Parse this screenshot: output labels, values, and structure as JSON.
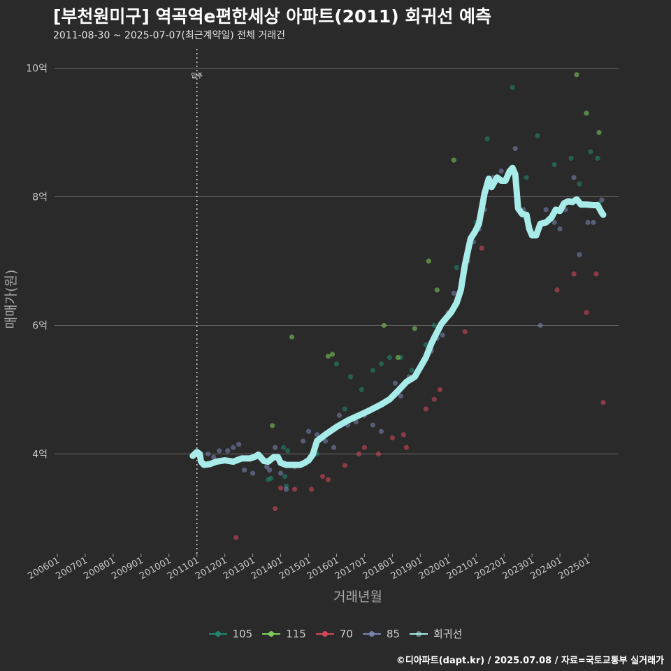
{
  "header": {
    "title": "[부천원미구] 역곡역e편한세상 아파트(2011) 회귀선 예측",
    "subtitle": "2011-08-30 ~ 2025-07-07(최근계약일) 전체 거래건"
  },
  "footer": {
    "credit": "©디아파트(dapt.kr) / 2025.07.08 / 자료=국토교통부 실거래가"
  },
  "colors": {
    "s105": "#1f8a70",
    "s115": "#7fd15a",
    "s70": "#d9485a",
    "s85": "#7b86b4",
    "regression": "#a8ecea",
    "background": "#2b2a2b",
    "grid": "#6a6a6a"
  },
  "chart_data": {
    "type": "scatter",
    "title": "[부천원미구] 역곡역e편한세상 아파트(2011) 회귀선 예측",
    "xlabel": "거래년월",
    "ylabel": "매매가(원)",
    "xlim": [
      2005.9,
      2026.1
    ],
    "ylim": [
      2.45,
      10.3
    ],
    "x_ticks": [
      {
        "label": "200601",
        "value": 2006.0
      },
      {
        "label": "200701",
        "value": 2007.0
      },
      {
        "label": "200801",
        "value": 2008.0
      },
      {
        "label": "200901",
        "value": 2009.0
      },
      {
        "label": "201001",
        "value": 2010.0
      },
      {
        "label": "201101",
        "value": 2011.0
      },
      {
        "label": "201201",
        "value": 2012.0
      },
      {
        "label": "201301",
        "value": 2013.0
      },
      {
        "label": "201401",
        "value": 2014.0
      },
      {
        "label": "201501",
        "value": 2015.0
      },
      {
        "label": "201601",
        "value": 2016.0
      },
      {
        "label": "201701",
        "value": 2017.0
      },
      {
        "label": "201801",
        "value": 2018.0
      },
      {
        "label": "201901",
        "value": 2019.0
      },
      {
        "label": "202001",
        "value": 2020.0
      },
      {
        "label": "202101",
        "value": 2021.0
      },
      {
        "label": "202201",
        "value": 2022.0
      },
      {
        "label": "202301",
        "value": 2023.0
      },
      {
        "label": "202401",
        "value": 2024.0
      },
      {
        "label": "202501",
        "value": 2025.0
      }
    ],
    "y_ticks": [
      {
        "label": "4억",
        "value": 4
      },
      {
        "label": "6억",
        "value": 6
      },
      {
        "label": "8억",
        "value": 8
      },
      {
        "label": "10억",
        "value": 10
      }
    ],
    "annotation": {
      "label": "입주",
      "x": 2011.0
    },
    "legend": [
      {
        "key": "s105",
        "label": "105",
        "kind": "point"
      },
      {
        "key": "s115",
        "label": "115",
        "kind": "point"
      },
      {
        "key": "s70",
        "label": "70",
        "kind": "point"
      },
      {
        "key": "s85",
        "label": "85",
        "kind": "point"
      },
      {
        "key": "regression",
        "label": "회귀선",
        "kind": "line"
      }
    ],
    "series": [
      {
        "name": "105",
        "key": "s105",
        "points": [
          [
            2013.55,
            3.6
          ],
          [
            2013.65,
            3.62
          ],
          [
            2014.1,
            4.1
          ],
          [
            2014.15,
            3.65
          ],
          [
            2014.2,
            3.5
          ],
          [
            2014.25,
            4.05
          ],
          [
            2015.3,
            4.0
          ],
          [
            2016.0,
            5.4
          ],
          [
            2016.3,
            4.7
          ],
          [
            2016.5,
            5.2
          ],
          [
            2016.9,
            5.0
          ],
          [
            2017.3,
            5.3
          ],
          [
            2017.6,
            5.4
          ],
          [
            2017.9,
            5.5
          ],
          [
            2018.3,
            5.5
          ],
          [
            2018.7,
            5.3
          ],
          [
            2019.2,
            5.7
          ],
          [
            2019.5,
            6.0
          ],
          [
            2020.3,
            6.9
          ],
          [
            2021.0,
            7.6
          ],
          [
            2021.4,
            8.9
          ],
          [
            2022.3,
            9.7
          ],
          [
            2022.8,
            8.3
          ],
          [
            2023.2,
            8.95
          ],
          [
            2023.8,
            8.5
          ],
          [
            2024.4,
            8.6
          ],
          [
            2024.7,
            8.2
          ],
          [
            2025.1,
            8.7
          ],
          [
            2025.35,
            8.6
          ],
          [
            2025.4,
            7.9
          ]
        ]
      },
      {
        "name": "115",
        "key": "s115",
        "points": [
          [
            2013.7,
            4.44
          ],
          [
            2014.4,
            5.82
          ],
          [
            2015.7,
            5.52
          ],
          [
            2015.85,
            5.55
          ],
          [
            2017.7,
            6.0
          ],
          [
            2018.2,
            5.5
          ],
          [
            2018.8,
            5.95
          ],
          [
            2019.3,
            7.0
          ],
          [
            2019.6,
            6.55
          ],
          [
            2020.2,
            8.57
          ],
          [
            2024.6,
            9.9
          ],
          [
            2024.95,
            9.3
          ],
          [
            2025.4,
            9.0
          ]
        ]
      },
      {
        "name": "70",
        "key": "s70",
        "points": [
          [
            2012.4,
            2.7
          ],
          [
            2013.8,
            3.15
          ],
          [
            2014.0,
            3.47
          ],
          [
            2014.5,
            3.45
          ],
          [
            2015.1,
            3.45
          ],
          [
            2015.5,
            3.65
          ],
          [
            2015.7,
            3.6
          ],
          [
            2016.3,
            3.82
          ],
          [
            2016.8,
            4.0
          ],
          [
            2017.0,
            4.1
          ],
          [
            2017.5,
            4.0
          ],
          [
            2018.0,
            4.25
          ],
          [
            2018.4,
            4.3
          ],
          [
            2018.5,
            4.1
          ],
          [
            2019.2,
            4.7
          ],
          [
            2019.5,
            4.85
          ],
          [
            2019.7,
            5.0
          ],
          [
            2020.6,
            5.9
          ],
          [
            2021.2,
            7.2
          ],
          [
            2023.9,
            6.55
          ],
          [
            2024.5,
            6.8
          ],
          [
            2024.95,
            6.2
          ],
          [
            2025.3,
            6.8
          ],
          [
            2025.55,
            4.8
          ]
        ]
      },
      {
        "name": "85",
        "key": "s85",
        "points": [
          [
            2011.4,
            4.0
          ],
          [
            2011.6,
            3.95
          ],
          [
            2011.8,
            4.05
          ],
          [
            2012.1,
            4.05
          ],
          [
            2012.3,
            4.1
          ],
          [
            2012.5,
            4.15
          ],
          [
            2012.7,
            3.75
          ],
          [
            2013.0,
            3.7
          ],
          [
            2013.2,
            4.0
          ],
          [
            2013.5,
            3.8
          ],
          [
            2013.6,
            3.75
          ],
          [
            2013.8,
            4.1
          ],
          [
            2014.0,
            3.7
          ],
          [
            2014.2,
            3.45
          ],
          [
            2014.5,
            3.8
          ],
          [
            2014.8,
            4.2
          ],
          [
            2015.0,
            4.35
          ],
          [
            2015.3,
            4.3
          ],
          [
            2015.6,
            4.2
          ],
          [
            2015.9,
            4.1
          ],
          [
            2016.1,
            4.6
          ],
          [
            2016.4,
            4.45
          ],
          [
            2016.7,
            4.5
          ],
          [
            2017.0,
            4.6
          ],
          [
            2017.3,
            4.45
          ],
          [
            2017.6,
            4.35
          ],
          [
            2017.9,
            4.85
          ],
          [
            2018.1,
            5.1
          ],
          [
            2018.3,
            4.9
          ],
          [
            2018.6,
            5.2
          ],
          [
            2018.9,
            5.3
          ],
          [
            2019.1,
            5.45
          ],
          [
            2019.4,
            5.6
          ],
          [
            2019.6,
            5.8
          ],
          [
            2019.8,
            5.85
          ],
          [
            2020.0,
            6.2
          ],
          [
            2020.2,
            6.5
          ],
          [
            2020.5,
            6.6
          ],
          [
            2020.7,
            7.0
          ],
          [
            2020.9,
            7.3
          ],
          [
            2021.1,
            7.5
          ],
          [
            2021.3,
            7.8
          ],
          [
            2021.6,
            8.3
          ],
          [
            2021.9,
            8.4
          ],
          [
            2022.4,
            8.75
          ],
          [
            2022.7,
            7.8
          ],
          [
            2023.0,
            7.4
          ],
          [
            2023.3,
            6.0
          ],
          [
            2023.5,
            7.8
          ],
          [
            2023.8,
            7.6
          ],
          [
            2024.0,
            7.5
          ],
          [
            2024.2,
            7.8
          ],
          [
            2024.5,
            8.3
          ],
          [
            2024.7,
            7.1
          ],
          [
            2025.0,
            7.6
          ],
          [
            2025.2,
            7.6
          ],
          [
            2025.5,
            7.95
          ]
        ]
      },
      {
        "name": "회귀선",
        "key": "regression",
        "points": [
          [
            2010.85,
            3.97
          ],
          [
            2011.0,
            4.03
          ],
          [
            2011.1,
            4.0
          ],
          [
            2011.15,
            3.88
          ],
          [
            2011.25,
            3.83
          ],
          [
            2011.45,
            3.84
          ],
          [
            2011.7,
            3.88
          ],
          [
            2012.0,
            3.9
          ],
          [
            2012.3,
            3.88
          ],
          [
            2012.6,
            3.93
          ],
          [
            2012.9,
            3.93
          ],
          [
            2013.1,
            3.96
          ],
          [
            2013.2,
            3.99
          ],
          [
            2013.4,
            3.89
          ],
          [
            2013.55,
            3.88
          ],
          [
            2013.75,
            3.95
          ],
          [
            2013.9,
            3.95
          ],
          [
            2014.0,
            3.86
          ],
          [
            2014.2,
            3.83
          ],
          [
            2014.4,
            3.83
          ],
          [
            2014.7,
            3.83
          ],
          [
            2014.85,
            3.86
          ],
          [
            2015.0,
            3.9
          ],
          [
            2015.15,
            3.99
          ],
          [
            2015.3,
            4.2
          ],
          [
            2015.6,
            4.3
          ],
          [
            2016.0,
            4.42
          ],
          [
            2016.4,
            4.52
          ],
          [
            2016.8,
            4.6
          ],
          [
            2017.2,
            4.68
          ],
          [
            2017.6,
            4.77
          ],
          [
            2017.9,
            4.85
          ],
          [
            2018.2,
            4.98
          ],
          [
            2018.5,
            5.12
          ],
          [
            2018.8,
            5.2
          ],
          [
            2019.0,
            5.35
          ],
          [
            2019.2,
            5.5
          ],
          [
            2019.4,
            5.72
          ],
          [
            2019.55,
            5.85
          ],
          [
            2019.75,
            6.02
          ],
          [
            2019.9,
            6.1
          ],
          [
            2020.1,
            6.2
          ],
          [
            2020.3,
            6.35
          ],
          [
            2020.45,
            6.55
          ],
          [
            2020.6,
            6.95
          ],
          [
            2020.8,
            7.35
          ],
          [
            2020.95,
            7.45
          ],
          [
            2021.1,
            7.58
          ],
          [
            2021.3,
            8.05
          ],
          [
            2021.45,
            8.28
          ],
          [
            2021.55,
            8.15
          ],
          [
            2021.75,
            8.3
          ],
          [
            2021.9,
            8.25
          ],
          [
            2022.05,
            8.25
          ],
          [
            2022.2,
            8.4
          ],
          [
            2022.3,
            8.45
          ],
          [
            2022.4,
            8.35
          ],
          [
            2022.5,
            7.82
          ],
          [
            2022.65,
            7.73
          ],
          [
            2022.8,
            7.72
          ],
          [
            2022.9,
            7.5
          ],
          [
            2023.0,
            7.4
          ],
          [
            2023.15,
            7.4
          ],
          [
            2023.3,
            7.58
          ],
          [
            2023.5,
            7.6
          ],
          [
            2023.7,
            7.68
          ],
          [
            2023.85,
            7.8
          ],
          [
            2024.0,
            7.78
          ],
          [
            2024.15,
            7.9
          ],
          [
            2024.3,
            7.93
          ],
          [
            2024.45,
            7.92
          ],
          [
            2024.6,
            7.96
          ],
          [
            2024.75,
            7.88
          ],
          [
            2024.95,
            7.88
          ],
          [
            2025.2,
            7.87
          ],
          [
            2025.35,
            7.87
          ],
          [
            2025.5,
            7.75
          ],
          [
            2025.55,
            7.72
          ]
        ]
      }
    ]
  }
}
